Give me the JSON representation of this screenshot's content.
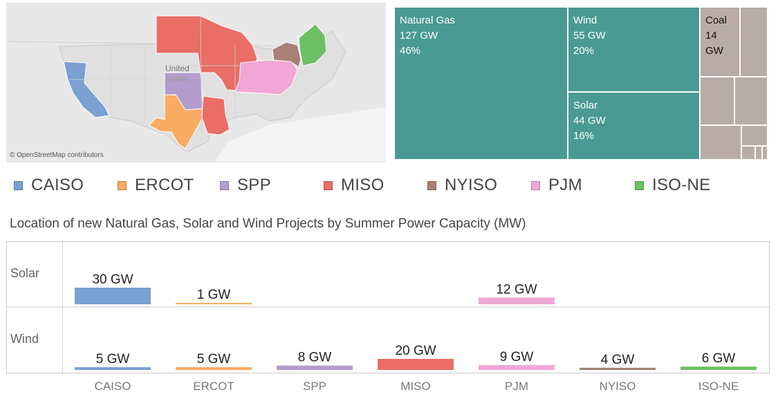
{
  "map": {
    "country_label_1": "United",
    "country_label_2": "States",
    "attribution": "© OpenStreetMap contributors"
  },
  "regions": [
    {
      "name": "CAISO",
      "color": "#7aa1d2"
    },
    {
      "name": "ERCOT",
      "color": "#f8ab62"
    },
    {
      "name": "SPP",
      "color": "#b49ccf"
    },
    {
      "name": "MISO",
      "color": "#ea6d67"
    },
    {
      "name": "NYISO",
      "color": "#a88076"
    },
    {
      "name": "PJM",
      "color": "#f1a7d6"
    },
    {
      "name": "ISO-NE",
      "color": "#6bc164"
    }
  ],
  "chart_data": [
    {
      "type": "treemap",
      "color_primary": "#4a9a94",
      "color_other": "#b9aca6",
      "items": [
        {
          "name": "Natural Gas",
          "value_label": "127 GW",
          "pct_label": "46%",
          "value": 127,
          "share": 46
        },
        {
          "name": "Wind",
          "value_label": "55 GW",
          "pct_label": "20%",
          "value": 55,
          "share": 20
        },
        {
          "name": "Solar",
          "value_label": "44 GW",
          "pct_label": "16%",
          "value": 44,
          "share": 16
        },
        {
          "name": "Coal",
          "value_label": "14 GW",
          "value": 14
        }
      ]
    },
    {
      "type": "bar",
      "title": "Location of new Natural Gas, Solar and Wind Projects by Summer Power Capacity (MW)",
      "categories": [
        "CAISO",
        "ERCOT",
        "SPP",
        "MISO",
        "PJM",
        "NYISO",
        "ISO-NE"
      ],
      "series": [
        {
          "name": "Solar",
          "values": [
            30,
            1,
            null,
            null,
            12,
            null,
            null
          ],
          "labels": [
            "30 GW",
            "1 GW",
            null,
            null,
            "12 GW",
            null,
            null
          ]
        },
        {
          "name": "Wind",
          "values": [
            5,
            5,
            8,
            20,
            9,
            4,
            6
          ],
          "labels": [
            "5 GW",
            "5 GW",
            "8 GW",
            "20 GW",
            "9 GW",
            "4 GW",
            "6 GW"
          ]
        }
      ]
    }
  ]
}
